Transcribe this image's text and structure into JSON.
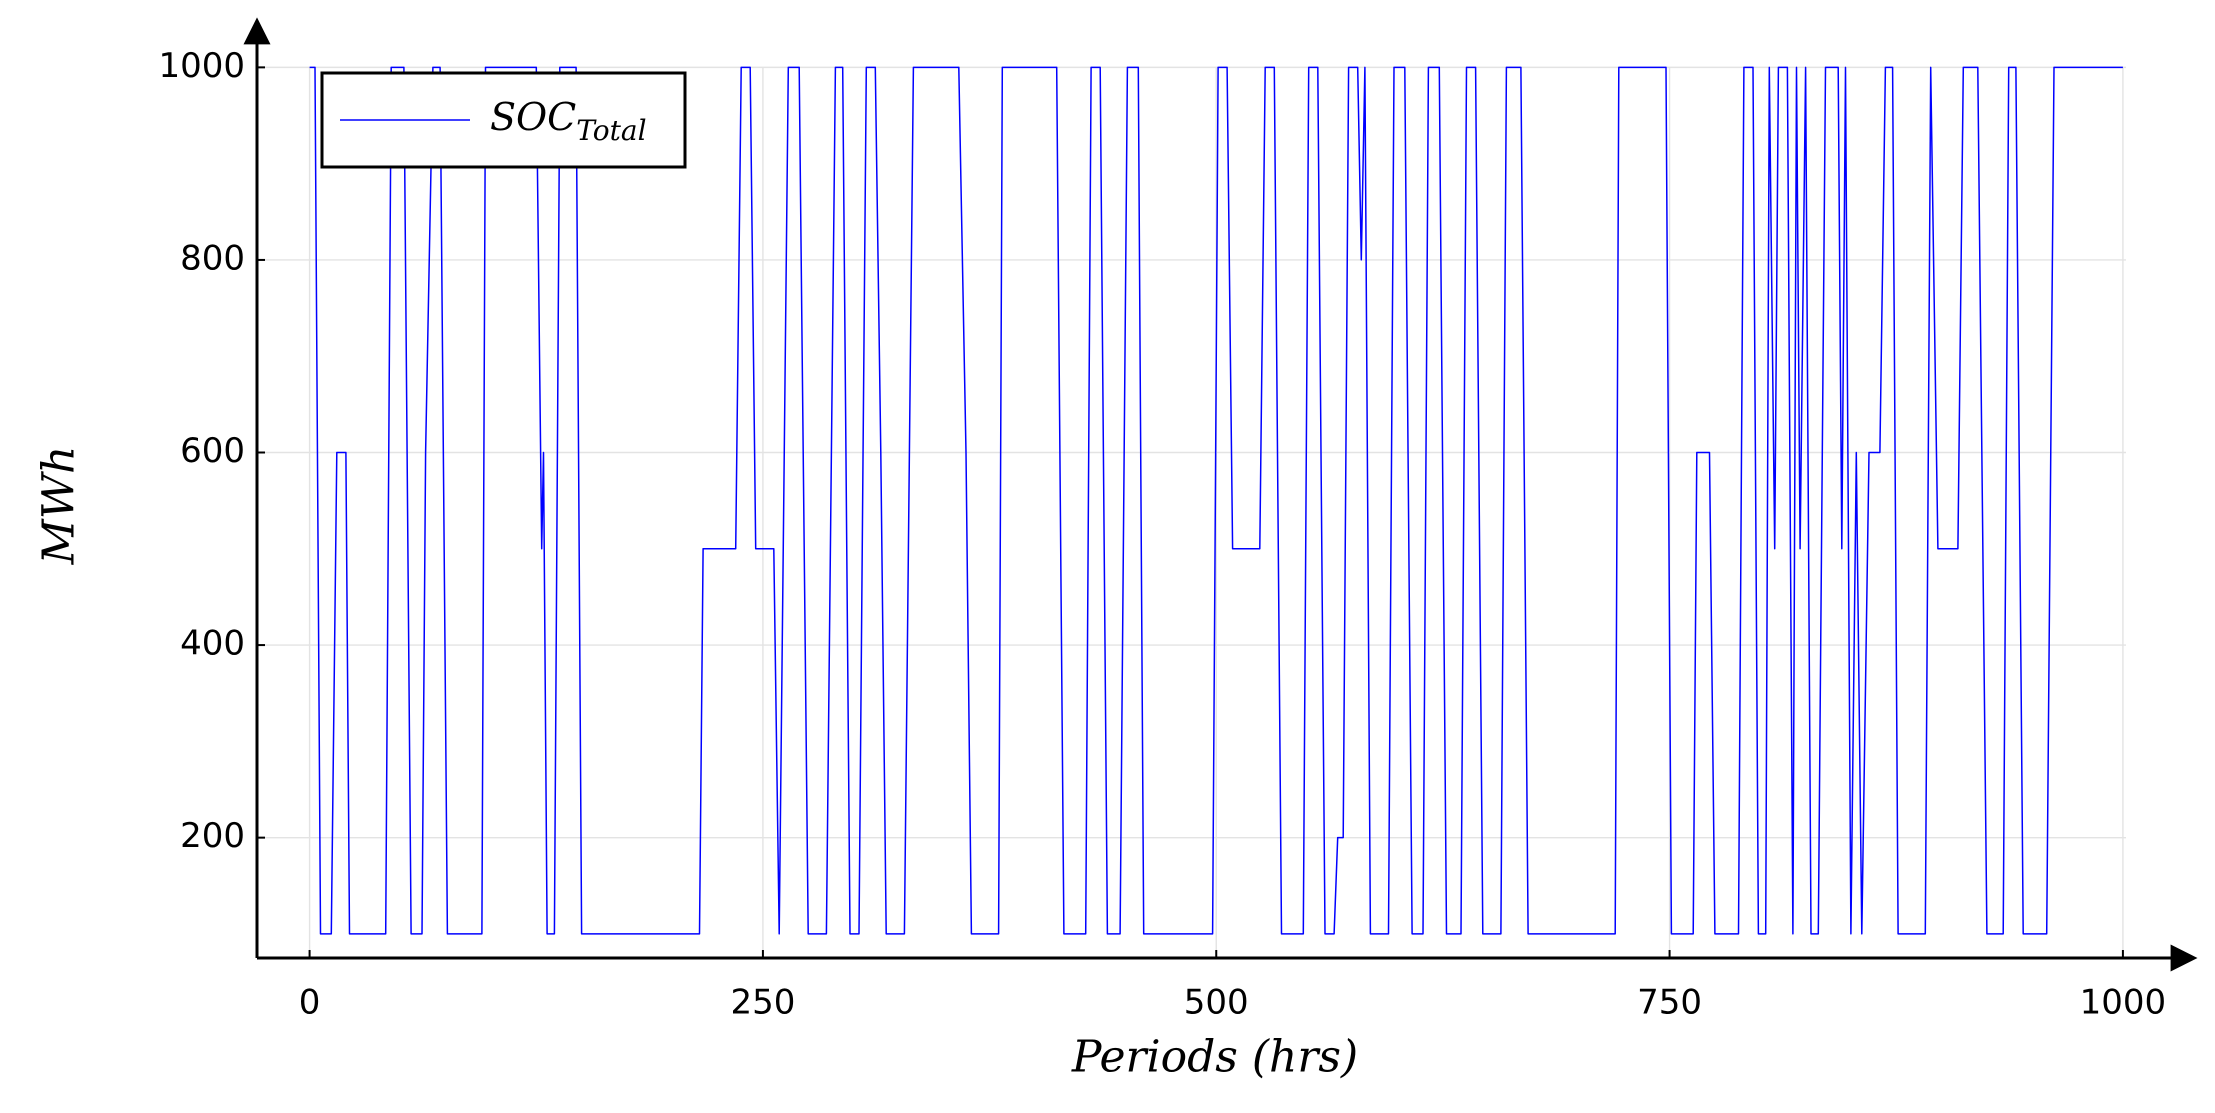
{
  "chart_data": {
    "type": "line",
    "xlabel": "Periods (hrs)",
    "ylabel": "MWh",
    "x": [
      0,
      3,
      6,
      12,
      15,
      20,
      22,
      42,
      45,
      52,
      56,
      62,
      64,
      68,
      72,
      76,
      95,
      97,
      125,
      128,
      129,
      131,
      135,
      138,
      147,
      150,
      215,
      217,
      235,
      238,
      243,
      246,
      256,
      259,
      264,
      270,
      275,
      285,
      290,
      294,
      298,
      303,
      307,
      312,
      315,
      318,
      328,
      333,
      358,
      362,
      365,
      380,
      382,
      412,
      416,
      428,
      431,
      436,
      440,
      447,
      451,
      457,
      460,
      498,
      501,
      506,
      509,
      524,
      527,
      532,
      536,
      548,
      551,
      556,
      560,
      565,
      567,
      570,
      573,
      578,
      580,
      582,
      585,
      595,
      598,
      604,
      608,
      614,
      617,
      623,
      627,
      635,
      638,
      643,
      647,
      657,
      660,
      668,
      672,
      720,
      722,
      748,
      751,
      763,
      765,
      772,
      775,
      788,
      791,
      796,
      799,
      803,
      805,
      808,
      810,
      815,
      818,
      820,
      822,
      825,
      828,
      832,
      836,
      843,
      845,
      847,
      850,
      853,
      856,
      860,
      866,
      869,
      873,
      876,
      891,
      894,
      898,
      909,
      912,
      920,
      925,
      934,
      937,
      941,
      945,
      958,
      962,
      1000
    ],
    "series": [
      {
        "name": "SOC_Total",
        "color": "#0000ff",
        "values": [
          1000,
          1000,
          100,
          100,
          600,
          600,
          100,
          100,
          1000,
          1000,
          100,
          100,
          600,
          1000,
          1000,
          100,
          100,
          1000,
          1000,
          500,
          600,
          100,
          100,
          1000,
          1000,
          100,
          100,
          500,
          500,
          1000,
          1000,
          500,
          500,
          100,
          1000,
          1000,
          100,
          100,
          1000,
          1000,
          100,
          100,
          1000,
          1000,
          600,
          100,
          100,
          1000,
          1000,
          600,
          100,
          100,
          1000,
          1000,
          100,
          100,
          1000,
          1000,
          100,
          100,
          1000,
          1000,
          100,
          100,
          1000,
          1000,
          500,
          500,
          1000,
          1000,
          100,
          100,
          1000,
          1000,
          100,
          100,
          200,
          200,
          1000,
          1000,
          800,
          1000,
          100,
          100,
          1000,
          1000,
          100,
          100,
          1000,
          1000,
          100,
          100,
          1000,
          1000,
          100,
          100,
          1000,
          1000,
          100,
          100,
          1000,
          1000,
          100,
          100,
          600,
          600,
          100,
          100,
          1000,
          1000,
          100,
          100,
          1000,
          500,
          1000,
          1000,
          100,
          1000,
          500,
          1000,
          100,
          100,
          1000,
          1000,
          500,
          1000,
          100,
          600,
          100,
          600,
          600,
          1000,
          1000,
          100,
          100,
          1000,
          500,
          500,
          1000,
          1000,
          100,
          100,
          1000,
          1000,
          100,
          100,
          1000,
          1000
        ]
      }
    ],
    "xlim": [
      -29,
      1037
    ],
    "ylim": [
      75,
      1044
    ],
    "xticks": [
      0,
      250,
      500,
      750,
      1000
    ],
    "yticks": [
      200,
      400,
      600,
      800,
      1000
    ],
    "grid": true,
    "legend": "upper left"
  }
}
